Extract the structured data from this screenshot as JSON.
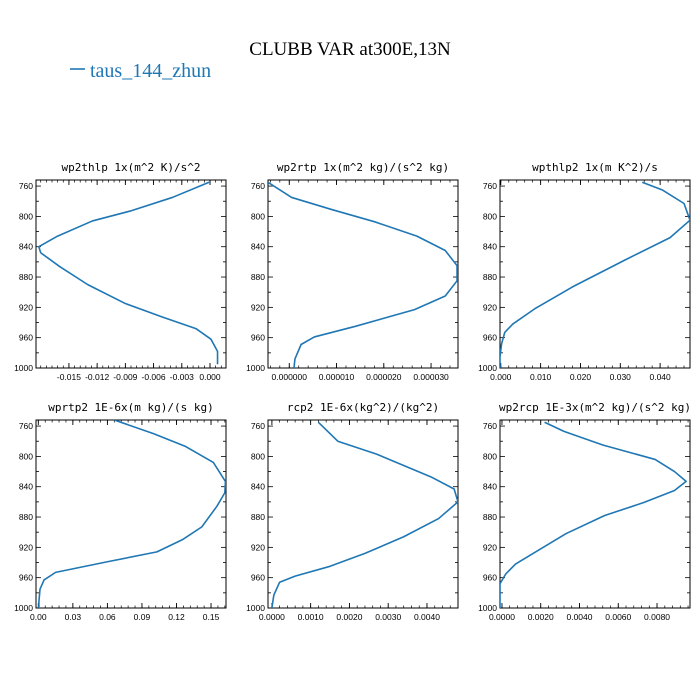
{
  "figure": {
    "title": "CLUBB VAR at300E,13N",
    "legend": [
      {
        "label": "taus_144_zhun",
        "color": "#1f77b4"
      }
    ],
    "line_color": "#1f77b4"
  },
  "chart_data": [
    {
      "type": "line",
      "title": "wp2thlp  1x(m^2 K)/s^2",
      "xlim": [
        -0.0185,
        0.0017
      ],
      "ylim": [
        1000,
        752
      ],
      "xticks": [
        -0.015,
        -0.012,
        -0.009,
        -0.006,
        -0.003,
        0.0
      ],
      "xtick_labels": [
        "-0.015",
        "-0.012",
        "-0.009",
        "-0.006",
        "-0.003",
        "0.000"
      ],
      "yticks": [
        760,
        800,
        840,
        880,
        920,
        960,
        1000
      ],
      "ytick_labels": [
        "760",
        "800",
        "840",
        "880",
        "920",
        "960",
        "1000"
      ],
      "series": [
        {
          "name": "taus_144_zhun",
          "points": [
            [
              -0.0001,
              755
            ],
            [
              -0.004,
              775
            ],
            [
              -0.0085,
              793
            ],
            [
              -0.0125,
              806
            ],
            [
              -0.0162,
              826
            ],
            [
              -0.0182,
              840
            ],
            [
              -0.018,
              848
            ],
            [
              -0.016,
              866
            ],
            [
              -0.013,
              890
            ],
            [
              -0.009,
              915
            ],
            [
              -0.005,
              933
            ],
            [
              -0.0015,
              948
            ],
            [
              0.0001,
              962
            ],
            [
              0.0008,
              978
            ],
            [
              0.0008,
              995
            ]
          ]
        }
      ]
    },
    {
      "type": "line",
      "title": "wp2rtp  1x(m^2 kg)/(s^2 kg)",
      "xlim": [
        -4.5e-06,
        3.57e-05
      ],
      "ylim": [
        1000,
        752
      ],
      "xticks": [
        0.0,
        1e-05,
        2e-05,
        3e-05
      ],
      "xtick_labels": [
        "0.000000",
        "0.000010",
        "0.000020",
        "0.000030"
      ],
      "yticks": [
        760,
        800,
        840,
        880,
        920,
        960,
        1000
      ],
      "ytick_labels": [
        "760",
        "800",
        "840",
        "880",
        "920",
        "960",
        "1000"
      ],
      "series": [
        {
          "name": "taus_144_zhun",
          "points": [
            [
              -4.5e-06,
              755
            ],
            [
              5e-07,
              775
            ],
            [
              9e-06,
              791
            ],
            [
              1.8e-05,
              807
            ],
            [
              2.7e-05,
              826
            ],
            [
              3.3e-05,
              845
            ],
            [
              3.55e-05,
              865
            ],
            [
              3.55e-05,
              885
            ],
            [
              3.3e-05,
              905
            ],
            [
              2.65e-05,
              923
            ],
            [
              1.4e-05,
              945
            ],
            [
              5.3e-06,
              959
            ],
            [
              2.5e-06,
              969
            ],
            [
              1.2e-06,
              988
            ],
            [
              1e-06,
              1000
            ]
          ]
        }
      ]
    },
    {
      "type": "line",
      "title": "wpthlp2  1x(m K^2)/s",
      "xlim": [
        -0.0002,
        0.0475
      ],
      "ylim": [
        1000,
        752
      ],
      "xticks": [
        0.0,
        0.01,
        0.02,
        0.03,
        0.04
      ],
      "xtick_labels": [
        "0.000",
        "0.010",
        "0.020",
        "0.030",
        "0.040"
      ],
      "yticks": [
        760,
        800,
        840,
        880,
        920,
        960,
        1000
      ],
      "ytick_labels": [
        "760",
        "800",
        "840",
        "880",
        "920",
        "960",
        "1000"
      ],
      "series": [
        {
          "name": "taus_144_zhun",
          "points": [
            [
              0.0355,
              755
            ],
            [
              0.0405,
              765
            ],
            [
              0.046,
              783
            ],
            [
              0.0475,
              805
            ],
            [
              0.0425,
              828
            ],
            [
              0.031,
              858
            ],
            [
              0.018,
              893
            ],
            [
              0.0085,
              922
            ],
            [
              0.003,
              942
            ],
            [
              0.001,
              953
            ],
            [
              0.0002,
              968
            ],
            [
              -0.0002,
              985
            ],
            [
              -0.0002,
              1000
            ]
          ]
        }
      ]
    },
    {
      "type": "line",
      "title": "wprtp2  1E-6x(m kg)/(s kg)",
      "xlim": [
        -0.002,
        0.163
      ],
      "ylim": [
        1000,
        752
      ],
      "xticks": [
        0.0,
        0.03,
        0.06,
        0.09,
        0.12,
        0.15
      ],
      "xtick_labels": [
        "0.00",
        "0.03",
        "0.06",
        "0.09",
        "0.12",
        "0.15"
      ],
      "yticks": [
        760,
        800,
        840,
        880,
        920,
        960,
        1000
      ],
      "ytick_labels": [
        "760",
        "800",
        "840",
        "880",
        "920",
        "960",
        "1000"
      ],
      "series": [
        {
          "name": "taus_144_zhun",
          "points": [
            [
              0.066,
              752
            ],
            [
              0.1,
              770
            ],
            [
              0.128,
              787
            ],
            [
              0.152,
              808
            ],
            [
              0.1625,
              833
            ],
            [
              0.162,
              848
            ],
            [
              0.155,
              866
            ],
            [
              0.142,
              893
            ],
            [
              0.125,
              910
            ],
            [
              0.103,
              926
            ],
            [
              0.06,
              939
            ],
            [
              0.015,
              953
            ],
            [
              0.005,
              963
            ],
            [
              0.0015,
              975
            ],
            [
              0.0005,
              992
            ],
            [
              0.0005,
              1000
            ]
          ]
        }
      ]
    },
    {
      "type": "line",
      "title": "rcp2  1E-6x(kg^2)/(kg^2)",
      "xlim": [
        -0.0001,
        0.0048
      ],
      "ylim": [
        1000,
        752
      ],
      "xticks": [
        0.0,
        0.001,
        0.002,
        0.003,
        0.004
      ],
      "xtick_labels": [
        "0.0000",
        "0.0010",
        "0.0020",
        "0.0030",
        "0.0040"
      ],
      "yticks": [
        760,
        800,
        840,
        880,
        920,
        960,
        1000
      ],
      "ytick_labels": [
        "760",
        "800",
        "840",
        "880",
        "920",
        "960",
        "1000"
      ],
      "series": [
        {
          "name": "taus_144_zhun",
          "points": [
            [
              0.0012,
              755
            ],
            [
              0.0017,
              780
            ],
            [
              0.0027,
              797
            ],
            [
              0.0041,
              827
            ],
            [
              0.0047,
              843
            ],
            [
              0.0048,
              860
            ],
            [
              0.0043,
              882
            ],
            [
              0.0034,
              906
            ],
            [
              0.0024,
              928
            ],
            [
              0.0015,
              945
            ],
            [
              0.0006,
              958
            ],
            [
              0.0002,
              966
            ],
            [
              5e-05,
              983
            ],
            [
              0.0,
              1000
            ]
          ]
        }
      ]
    },
    {
      "type": "line",
      "title": "wp2rcp  1E-3x(m^2 kg)/(s^2 kg)",
      "xlim": [
        -0.0001,
        0.0097
      ],
      "ylim": [
        1000,
        752
      ],
      "xticks": [
        0.0,
        0.002,
        0.004,
        0.006,
        0.008
      ],
      "xtick_labels": [
        "0.0000",
        "0.0020",
        "0.0040",
        "0.0060",
        "0.0080"
      ],
      "yticks": [
        760,
        800,
        840,
        880,
        920,
        960,
        1000
      ],
      "ytick_labels": [
        "760",
        "800",
        "840",
        "880",
        "920",
        "960",
        "1000"
      ],
      "series": [
        {
          "name": "taus_144_zhun",
          "points": [
            [
              0.0022,
              755
            ],
            [
              0.0032,
              767
            ],
            [
              0.0052,
              785
            ],
            [
              0.0079,
              804
            ],
            [
              0.0089,
              820
            ],
            [
              0.0095,
              833
            ],
            [
              0.0089,
              845
            ],
            [
              0.0073,
              861
            ],
            [
              0.0053,
              878
            ],
            [
              0.0033,
              902
            ],
            [
              0.0018,
              925
            ],
            [
              0.0007,
              942
            ],
            [
              0.0002,
              955
            ],
            [
              -0.0001,
              968
            ],
            [
              -0.0001,
              1000
            ]
          ]
        }
      ]
    }
  ]
}
